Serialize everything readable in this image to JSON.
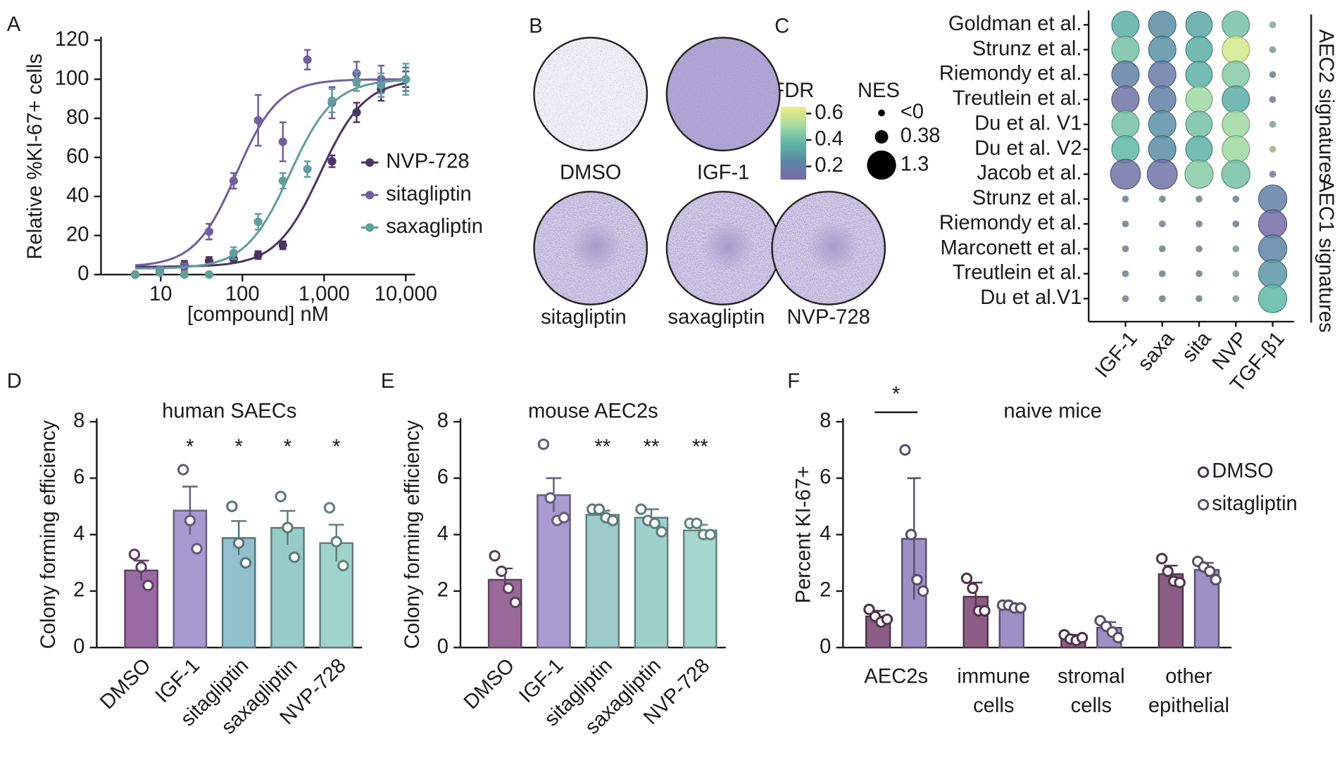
{
  "chart_data": [
    {
      "type": "line",
      "panel": "A",
      "xlabel": "[compound] nM",
      "ylabel": "Relative %KI-67+ cells",
      "xscale": "log",
      "xlim": [
        2,
        13000
      ],
      "xticks": [
        10,
        100,
        {
          "value": 1000,
          "label": "1,000"
        },
        {
          "value": 10000,
          "label": "10,000"
        }
      ],
      "ylim": [
        0,
        120
      ],
      "yticks": [
        0,
        20,
        40,
        60,
        80,
        100,
        120
      ],
      "legend": "right",
      "x": [
        4.88,
        9.77,
        19.5,
        39.1,
        78.1,
        156,
        313,
        625,
        1250,
        2500,
        5000,
        10000
      ],
      "series": [
        {
          "name": "NVP-728",
          "color": "#4b3566",
          "values": [
            0,
            1,
            5,
            7,
            8,
            10,
            15,
            null,
            58,
            83,
            95,
            100
          ],
          "errors": [
            1,
            1,
            2,
            2,
            2,
            2,
            2,
            null,
            3,
            5,
            6,
            4
          ],
          "fit": {
            "bottom": 4,
            "top": 100,
            "ec50": 900,
            "hill": 1.6
          }
        },
        {
          "name": "sitagliptin",
          "color": "#6f5f9e",
          "values": [
            0,
            2,
            4,
            22,
            48,
            79,
            68,
            110,
            88,
            103,
            100,
            100
          ],
          "errors": [
            1,
            2,
            2,
            4,
            4,
            13,
            10,
            5,
            8,
            6,
            7,
            6
          ],
          "fit": {
            "bottom": 4,
            "top": 100,
            "ec50": 85,
            "hill": 1.7
          }
        },
        {
          "name": "saxagliptin",
          "color": "#5f9e9c",
          "values": [
            0,
            1,
            0,
            0,
            11,
            27,
            48,
            54,
            89,
            99,
            97,
            100
          ],
          "errors": [
            1,
            1,
            1,
            1,
            3,
            4,
            4,
            4,
            6,
            5,
            6,
            8
          ],
          "fit": {
            "bottom": 3,
            "top": 100,
            "ec50": 380,
            "hill": 1.6
          }
        }
      ]
    },
    {
      "type": "dotplot",
      "panel": "C",
      "colorbar_title": "FDR",
      "size_title": "NES",
      "clim": [
        0.1,
        0.65
      ],
      "colorticks": [
        0.2,
        0.4,
        0.6
      ],
      "colormap": [
        "#7b67a6",
        "#5a88a3",
        "#5db5a8",
        "#a6dba0",
        "#eeef7e"
      ],
      "sizeticks": [
        {
          "value": 0,
          "label": "<0"
        },
        0.38,
        1.3
      ],
      "rows": [
        "Goldman et al.",
        "Strunz et al.",
        "Riemondy et al.",
        "Treutlein et al.",
        "Du et al. V1",
        "Du et al. V2",
        "Jacob et al.",
        "Strunz et al.",
        "Riemondy et al.",
        "Marconett et al.",
        "Treutlein et al.",
        "Du et al.V1"
      ],
      "columns": [
        "IGF-1",
        "saxa",
        "sita",
        "NVP",
        "TGF-β1"
      ],
      "groups": [
        {
          "label": "AEC2 signatures",
          "first_row": 0,
          "last_row": 6
        },
        {
          "label": "AEC1 signatures",
          "first_row": 7,
          "last_row": 11
        }
      ],
      "fdr": [
        [
          0.35,
          0.25,
          0.33,
          0.42,
          0.5
        ],
        [
          0.42,
          0.26,
          0.35,
          0.6,
          0.4
        ],
        [
          0.2,
          0.18,
          0.36,
          0.45,
          0.22
        ],
        [
          0.15,
          0.2,
          0.5,
          0.35,
          0.15
        ],
        [
          0.42,
          0.26,
          0.42,
          0.5,
          0.45
        ],
        [
          0.38,
          0.25,
          0.36,
          0.5,
          0.6
        ],
        [
          0.15,
          0.15,
          0.45,
          0.42,
          0.15
        ],
        [
          0.2,
          0.2,
          0.2,
          0.22,
          0.2
        ],
        [
          0.2,
          0.2,
          0.2,
          0.22,
          0.12
        ],
        [
          0.22,
          0.22,
          0.22,
          0.4,
          0.22
        ],
        [
          0.25,
          0.25,
          0.25,
          0.42,
          0.28
        ],
        [
          0.22,
          0.22,
          0.25,
          0.42,
          0.38
        ]
      ],
      "nes": [
        [
          1.2,
          1.2,
          1.15,
          1.2,
          -1
        ],
        [
          1.2,
          1.2,
          1.15,
          1.2,
          -1
        ],
        [
          1.2,
          1.2,
          1.15,
          1.2,
          -1
        ],
        [
          1.2,
          1.2,
          1.15,
          1.2,
          -1
        ],
        [
          1.2,
          1.2,
          1.15,
          1.2,
          -1
        ],
        [
          1.2,
          1.2,
          1.15,
          1.2,
          -1
        ],
        [
          1.35,
          1.35,
          1.25,
          1.25,
          -1
        ],
        [
          -1,
          -1,
          -1,
          -1,
          1.25
        ],
        [
          -1,
          -1,
          -1,
          -1,
          1.25
        ],
        [
          -1,
          -1,
          -1,
          -1,
          1.25
        ],
        [
          -1,
          -1,
          -1,
          -1,
          1.25
        ],
        [
          -1,
          -1,
          -1,
          -1,
          1.25
        ]
      ]
    },
    {
      "type": "bar",
      "panel": "D",
      "title": "human SAECs",
      "ylabel": "Colony forming efficiency",
      "ylim": [
        0,
        8
      ],
      "yticks": [
        0,
        2,
        4,
        6,
        8
      ],
      "categories": [
        "DMSO",
        "IGF-1",
        "sitagliptin",
        "saxagliptin",
        "NVP-728"
      ],
      "values": [
        2.73,
        4.85,
        3.88,
        4.24,
        3.7
      ],
      "errors": [
        0.35,
        0.85,
        0.6,
        0.6,
        0.65
      ],
      "points": [
        [
          3.3,
          2.85,
          2.2
        ],
        [
          6.3,
          4.5,
          3.5
        ],
        [
          5.0,
          3.7,
          3.0
        ],
        [
          5.35,
          4.25,
          3.2
        ],
        [
          4.95,
          3.75,
          2.9
        ]
      ],
      "colors": [
        "#9a6aa5",
        "#a69bd0",
        "#92c0cc",
        "#96cbc8",
        "#9fd3cc"
      ],
      "significance": [
        null,
        "*",
        "*",
        "*",
        "*"
      ]
    },
    {
      "type": "bar",
      "panel": "E",
      "title": "mouse AEC2s",
      "ylabel": "Colony forming efficiency",
      "ylim": [
        0,
        8
      ],
      "yticks": [
        0,
        2,
        4,
        6,
        8
      ],
      "categories": [
        "DMSO",
        "IGF-1",
        "sitagliptin",
        "saxagliptin",
        "NVP-728"
      ],
      "values": [
        2.4,
        5.4,
        4.7,
        4.6,
        4.15
      ],
      "errors": [
        0.4,
        0.6,
        0.15,
        0.3,
        0.2
      ],
      "points": [
        [
          3.25,
          2.7,
          2.1,
          1.6
        ],
        [
          7.2,
          5.3,
          4.5,
          4.6
        ],
        [
          4.9,
          4.9,
          4.6,
          4.5
        ],
        [
          4.9,
          4.5,
          4.4,
          4.1
        ],
        [
          4.4,
          4.4,
          4.0,
          4.0
        ]
      ],
      "colors": [
        "#996a99",
        "#a99bd0",
        "#9ccbc9",
        "#9fd0cb",
        "#a5d6cf"
      ],
      "significance": [
        null,
        null,
        "**",
        "**",
        "**"
      ]
    },
    {
      "type": "grouped_bar",
      "panel": "F",
      "title": "naive mice",
      "ylabel": "Percent KI-67+",
      "ylim": [
        0,
        8
      ],
      "yticks": [
        0,
        2,
        4,
        6,
        8
      ],
      "legend": "right",
      "categories": [
        "AEC2s",
        "immune cells",
        "stromal cells",
        "other epithelial"
      ],
      "series": [
        {
          "name": "DMSO",
          "color": "#8c5e86",
          "values": [
            1.1,
            1.8,
            0.35,
            2.6
          ],
          "errors": [
            0.2,
            0.5,
            0.1,
            0.3
          ],
          "points": [
            [
              1.35,
              1.1,
              0.9,
              1.0
            ],
            [
              2.45,
              2.1,
              1.3,
              1.3
            ],
            [
              0.45,
              0.3,
              0.25,
              0.35
            ],
            [
              3.15,
              2.7,
              2.35,
              2.3
            ]
          ]
        },
        {
          "name": "sitagliptin",
          "color": "#9d90c4",
          "values": [
            3.85,
            1.45,
            0.7,
            2.75
          ],
          "errors": [
            2.15,
            0.1,
            0.2,
            0.25
          ],
          "points": [
            [
              7.0,
              4.0,
              2.4,
              2.0
            ],
            [
              1.5,
              1.5,
              1.4,
              1.4
            ],
            [
              0.95,
              0.75,
              0.55,
              0.35
            ],
            [
              3.05,
              2.85,
              2.7,
              2.4
            ]
          ]
        }
      ],
      "significance": [
        {
          "category": 0,
          "label": "*"
        }
      ]
    }
  ],
  "image_panel": {
    "panel": "B",
    "wells": [
      "DMSO",
      "IGF-1",
      "sitagliptin",
      "saxagliptin",
      "NVP-728"
    ]
  }
}
